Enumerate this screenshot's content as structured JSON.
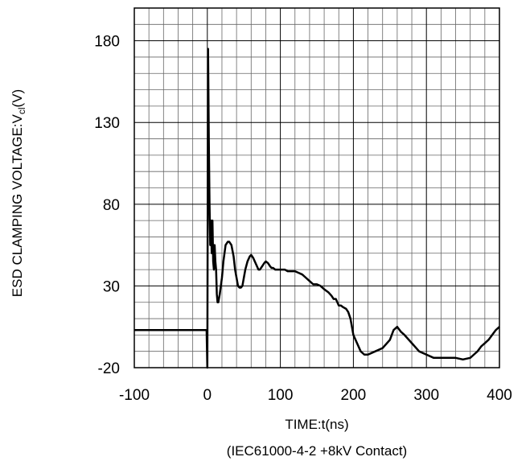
{
  "chart_data": {
    "type": "line",
    "xlabel": "TIME:t(ns)",
    "ylabel_prefix": "ESD CLAMPING VOLTAGE:V",
    "ylabel_subscript": "cl",
    "ylabel_suffix": "(V)",
    "caption": "(IEC61000-4-2 +8kV Contact)",
    "xlim": [
      -100,
      400
    ],
    "ylim": [
      -20,
      200
    ],
    "x_ticks": [
      -100,
      0,
      100,
      200,
      300,
      400
    ],
    "y_ticks": [
      -20,
      30,
      80,
      130,
      180
    ],
    "x_tick_labels": [
      "-100",
      "0",
      "100",
      "200",
      "300",
      "400"
    ],
    "y_tick_labels": [
      "-20",
      "30",
      "80",
      "130",
      "180"
    ],
    "grid": true,
    "line_color": "#000000",
    "series": [
      {
        "x": [
          -100,
          -80,
          -60,
          -40,
          -20,
          -5,
          -2,
          -1,
          0,
          1,
          2,
          3,
          4,
          5,
          6,
          7,
          8,
          9,
          10,
          11,
          12,
          13,
          14,
          15,
          17,
          20,
          22,
          25,
          28,
          30,
          33,
          36,
          38,
          40,
          42,
          44,
          46,
          48,
          50,
          52,
          55,
          58,
          60,
          63,
          66,
          68,
          70,
          72,
          75,
          78,
          80,
          83,
          86,
          88,
          90,
          93,
          96,
          100,
          103,
          106,
          110,
          115,
          120,
          125,
          130,
          135,
          140,
          145,
          150,
          155,
          160,
          163,
          166,
          170,
          173,
          176,
          180,
          183,
          186,
          190,
          193,
          196,
          200,
          210,
          215,
          220,
          230,
          240,
          250,
          255,
          260,
          265,
          270,
          280,
          290,
          300,
          310,
          320,
          330,
          340,
          350,
          360,
          365,
          370,
          375,
          380,
          385,
          390,
          395,
          400
        ],
        "y": [
          3,
          3,
          3,
          3,
          3,
          3,
          3,
          3,
          -20,
          175,
          120,
          80,
          55,
          70,
          50,
          70,
          45,
          40,
          55,
          45,
          40,
          25,
          20,
          20,
          25,
          35,
          45,
          55,
          57,
          57,
          55,
          48,
          40,
          35,
          30,
          29,
          29,
          30,
          35,
          40,
          45,
          48,
          49,
          47,
          44,
          42,
          40,
          40,
          42,
          44,
          45,
          44,
          42,
          41,
          41,
          40,
          40,
          40,
          40,
          40,
          39,
          39,
          39,
          38,
          37,
          35,
          33,
          31,
          31,
          30,
          28,
          27,
          26,
          24,
          22,
          22,
          18,
          18,
          17,
          16,
          14,
          10,
          0,
          -10,
          -12,
          -12,
          -10,
          -8,
          -3,
          3,
          5,
          2,
          0,
          -5,
          -10,
          -12,
          -14,
          -14,
          -14,
          -14,
          -15,
          -14,
          -12,
          -10,
          -7,
          -5,
          -3,
          0,
          3,
          5
        ]
      }
    ]
  }
}
